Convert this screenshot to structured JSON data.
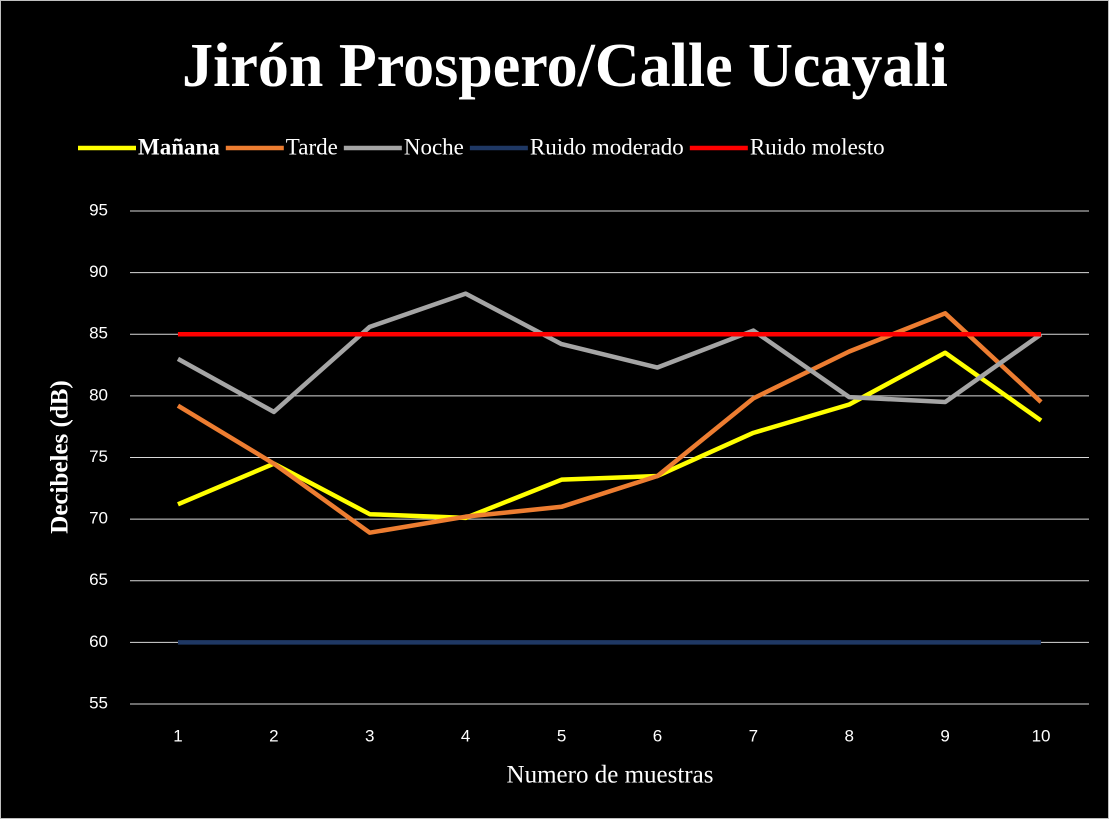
{
  "chart_data": {
    "type": "line",
    "title": "Jirón Prospero/Calle Ucayali",
    "x_label": "Numero de muestras",
    "y_label": "Decibeles (dB)",
    "categories": [
      "1",
      "2",
      "3",
      "4",
      "5",
      "6",
      "7",
      "8",
      "9",
      "10"
    ],
    "series": [
      {
        "name": "Mañana",
        "color": "#ffff00",
        "bold": true,
        "values": [
          71.2,
          74.5,
          70.4,
          70.1,
          73.2,
          73.5,
          77.0,
          79.3,
          83.5,
          78.0
        ]
      },
      {
        "name": "Tarde",
        "color": "#ed7d31",
        "values": [
          79.2,
          74.5,
          68.9,
          70.2,
          71.0,
          73.5,
          79.8,
          83.6,
          86.7,
          79.5
        ]
      },
      {
        "name": "Noche",
        "color": "#a5a5a5",
        "values": [
          83.0,
          78.7,
          85.6,
          88.3,
          84.2,
          82.3,
          85.3,
          79.9,
          79.5,
          85.0
        ]
      },
      {
        "name": "Ruido moderado",
        "color": "#1f3864",
        "values": [
          60,
          60,
          60,
          60,
          60,
          60,
          60,
          60,
          60,
          60
        ]
      },
      {
        "name": "Ruido molesto",
        "color": "#ff0000",
        "values": [
          85,
          85,
          85,
          85,
          85,
          85,
          85,
          85,
          85,
          85
        ]
      }
    ],
    "ylim": [
      55,
      95
    ],
    "yticks": [
      55,
      60,
      65,
      70,
      75,
      80,
      85,
      90,
      95
    ],
    "grid": true,
    "legend": "top"
  }
}
